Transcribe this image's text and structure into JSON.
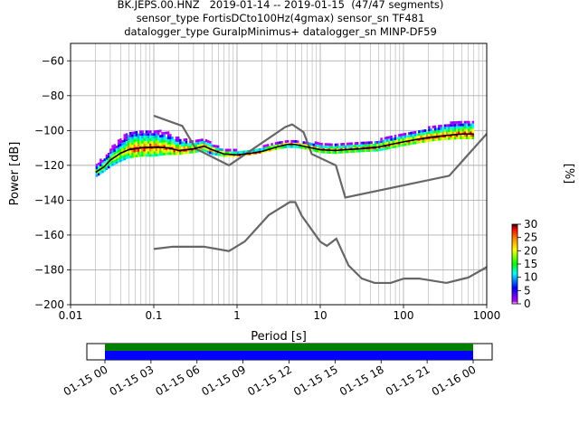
{
  "title_lines": [
    "BK.JEPS.00.HNZ   2019-01-14 -- 2019-01-15  (47/47 segments)",
    "sensor_type FortisDCto100Hz(4gmax) sensor_sn TF481",
    "datalogger_type GuralpMinimus+ datalogger_sn MINP-DF59"
  ],
  "chart_data": {
    "type": "heatmap",
    "xlabel": "Period [s]",
    "ylabel": "Power [dB]",
    "xscale": "log",
    "xlim": [
      0.01,
      1000
    ],
    "ylim": [
      -200,
      -50
    ],
    "xticks": [
      0.01,
      0.1,
      1,
      10,
      100,
      1000
    ],
    "xtick_labels": [
      "0.01",
      "0.1",
      "1",
      "10",
      "100",
      "1000"
    ],
    "yticks": [
      -200,
      -180,
      -160,
      -140,
      -120,
      -100,
      -80,
      -60
    ],
    "ytick_labels": [
      "−200",
      "−180",
      "−160",
      "−140",
      "−120",
      "−100",
      "−80",
      "−60"
    ],
    "grid": true,
    "colorbar": {
      "label": "[%]",
      "min": 0,
      "max": 30,
      "ticks": [
        0,
        5,
        10,
        15,
        20,
        25,
        30
      ],
      "tick_labels": [
        "0",
        "5",
        "10",
        "15",
        "20",
        "25",
        "30"
      ],
      "colormap": [
        "#ffffff",
        "#bb00ff",
        "#0000ff",
        "#00ffff",
        "#00ff00",
        "#ffff00",
        "#ff8800",
        "#ff0000",
        "#330000"
      ]
    },
    "noise_model_high": {
      "x": [
        0.1,
        0.22,
        0.32,
        0.8,
        3.8,
        4.6,
        6.3,
        7.9,
        15.4,
        20,
        354,
        10000
      ],
      "y": [
        -91.5,
        -97.4,
        -110.5,
        -120,
        -98,
        -96.5,
        -101,
        -113.5,
        -120,
        -138.5,
        -126,
        -48.5
      ]
    },
    "noise_model_low": {
      "x": [
        0.1,
        0.17,
        0.4,
        0.8,
        1.24,
        2.4,
        4.3,
        5,
        6,
        10,
        12,
        15.6,
        21.9,
        31.6,
        45,
        70,
        101,
        154,
        328,
        600,
        10000
      ],
      "y": [
        -168,
        -166.7,
        -166.7,
        -169.2,
        -163.7,
        -148.6,
        -141.1,
        -141.1,
        -149,
        -163.8,
        -166.2,
        -162.1,
        -177.5,
        -185,
        -187.5,
        -187.5,
        -185,
        -185,
        -187.5,
        -184.4,
        -151.5
      ]
    },
    "mode_line": {
      "x": [
        0.02,
        0.025,
        0.03,
        0.04,
        0.05,
        0.07,
        0.1,
        0.15,
        0.2,
        0.3,
        0.4,
        0.5,
        0.7,
        1,
        1.5,
        2,
        3,
        4,
        5,
        7,
        10,
        15,
        20,
        30,
        50,
        70,
        100,
        150,
        200,
        300,
        500,
        700
      ],
      "y": [
        -124,
        -121,
        -117,
        -113,
        -111,
        -110,
        -109.5,
        -110,
        -111.5,
        -110.5,
        -109,
        -111,
        -113.5,
        -114,
        -113,
        -112,
        -109.5,
        -108,
        -108,
        -109.5,
        -111,
        -111.5,
        -111,
        -110.5,
        -109.5,
        -108,
        -106.5,
        -105,
        -104,
        -103,
        -102,
        -102
      ]
    },
    "psd_band": {
      "x": [
        0.02,
        0.025,
        0.03,
        0.04,
        0.05,
        0.07,
        0.1,
        0.15,
        0.2,
        0.3,
        0.4,
        0.5,
        0.7,
        1,
        1.5,
        2,
        3,
        4,
        5,
        7,
        10,
        15,
        20,
        30,
        50,
        70,
        100,
        150,
        200,
        300,
        500,
        700
      ],
      "upper": [
        -120,
        -116,
        -111,
        -105,
        -101,
        -100,
        -100,
        -102,
        -105,
        -106,
        -105,
        -108,
        -111,
        -112,
        -111,
        -110,
        -107,
        -106,
        -106,
        -107,
        -108,
        -108,
        -108,
        -107,
        -106,
        -104,
        -102,
        -100,
        -99,
        -97,
        -95,
        -95
      ],
      "lower": [
        -127,
        -124,
        -121,
        -118,
        -116,
        -115,
        -115,
        -114,
        -114,
        -113,
        -112,
        -114,
        -115,
        -115,
        -114,
        -113,
        -111,
        -110,
        -110,
        -111,
        -113,
        -113.5,
        -113,
        -112.5,
        -112,
        -110.5,
        -109,
        -107.5,
        -106.5,
        -105.5,
        -105,
        -105
      ]
    },
    "timeline": {
      "tick_labels": [
        "01-15 00",
        "01-15 03",
        "01-15 06",
        "01-15 09",
        "01-15 12",
        "01-15 15",
        "01-15 18",
        "01-15 21",
        "01-16 00"
      ],
      "coverage_colors": [
        "#008000",
        "#0000ff"
      ]
    }
  }
}
